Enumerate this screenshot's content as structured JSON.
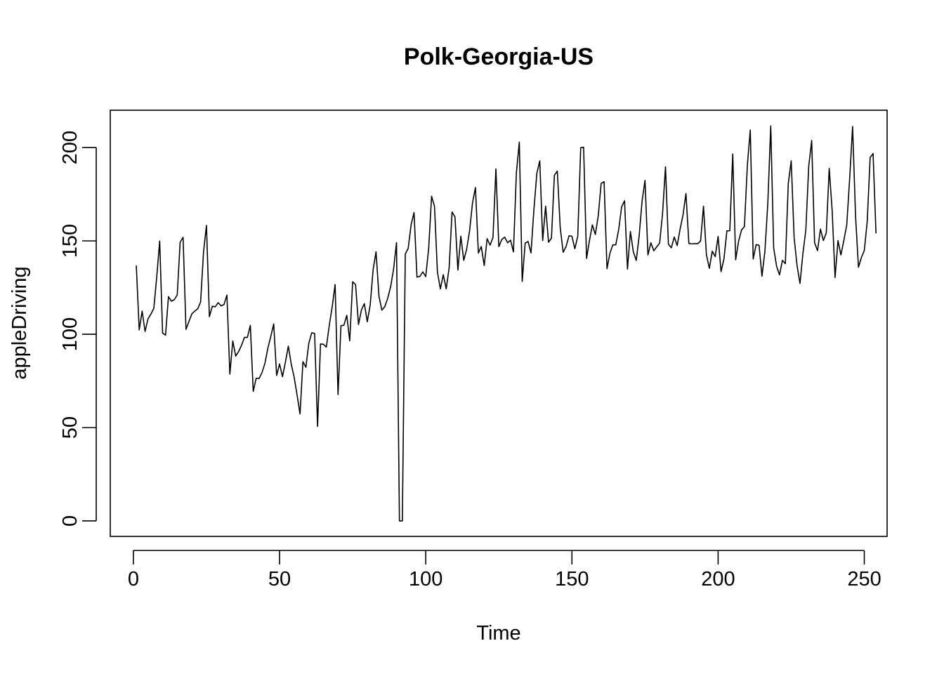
{
  "chart_data": {
    "type": "line",
    "title": "Polk-Georgia-US",
    "xlabel": "Time",
    "ylabel": "appleDriving",
    "xlim": [
      -7.9,
      257.8
    ],
    "ylim": [
      -8.3,
      220.0
    ],
    "x_ticks": [
      0,
      50,
      100,
      150,
      200,
      250
    ],
    "y_ticks": [
      0,
      50,
      100,
      150,
      200
    ],
    "x_start": 1,
    "series": [
      {
        "color": "#000000",
        "values": [
          136.8,
          102.3,
          112.4,
          101.5,
          108.2,
          110.8,
          113.9,
          130.9,
          149.9,
          100.6,
          99.5,
          120.1,
          117.7,
          118.5,
          121.0,
          149.3,
          151.9,
          102.6,
          106.8,
          110.9,
          112.4,
          113.6,
          117.3,
          144.2,
          158.3,
          109.4,
          115.0,
          114.7,
          116.9,
          115.2,
          115.9,
          121.0,
          78.6,
          96.4,
          88.3,
          90.7,
          94.1,
          98.3,
          98.3,
          104.7,
          69.4,
          76.4,
          76.3,
          79.5,
          84.4,
          92.5,
          98.8,
          105.5,
          77.9,
          84.1,
          77.3,
          85.0,
          93.6,
          84.0,
          76.9,
          67.4,
          57.3,
          85.3,
          82.3,
          95.1,
          100.8,
          100.4,
          50.6,
          94.8,
          94.6,
          93.1,
          104.7,
          114.7,
          126.6,
          67.7,
          104.6,
          104.8,
          110.1,
          96.5,
          128.1,
          126.6,
          105.2,
          113.0,
          116.4,
          106.7,
          115.6,
          134.6,
          144.2,
          120.3,
          112.9,
          114.8,
          119.3,
          125.5,
          134.9,
          149.1,
          0.0,
          0.0,
          143.0,
          146.0,
          158.7,
          165.2,
          130.6,
          131.0,
          133.4,
          130.9,
          145.9,
          173.9,
          168.5,
          133.2,
          124.3,
          131.9,
          124.3,
          135.5,
          165.5,
          162.8,
          134.4,
          152.5,
          139.6,
          145.6,
          155.4,
          170.4,
          178.6,
          143.5,
          147.0,
          136.8,
          151.2,
          147.7,
          151.9,
          188.6,
          146.9,
          150.7,
          152.0,
          149.0,
          150.4,
          144.1,
          186.4,
          202.9,
          128.3,
          148.8,
          149.7,
          143.6,
          166.8,
          186.2,
          192.9,
          150.2,
          168.6,
          149.3,
          151.5,
          185.2,
          187.4,
          157.1,
          143.9,
          147.0,
          152.7,
          152.5,
          145.8,
          152.6,
          199.9,
          200.2,
          140.6,
          150.2,
          158.6,
          153.4,
          163.4,
          180.8,
          181.7,
          135.1,
          143.4,
          147.9,
          147.9,
          156.1,
          168.3,
          171.5,
          134.9,
          155.0,
          144.2,
          139.5,
          152.8,
          171.5,
          182.4,
          142.5,
          149.0,
          144.7,
          146.8,
          148.8,
          164.7,
          189.7,
          148.2,
          146.3,
          152.1,
          147.5,
          156.4,
          163.9,
          175.4,
          148.6,
          148.4,
          148.5,
          148.5,
          149.9,
          168.6,
          142.6,
          135.3,
          144.5,
          141.6,
          152.4,
          133.5,
          140.4,
          155.4,
          155.4,
          196.6,
          139.9,
          149.8,
          155.8,
          157.7,
          190.5,
          209.4,
          140.3,
          148.0,
          147.7,
          131.1,
          144.3,
          170.2,
          211.6,
          146.3,
          136.4,
          131.8,
          139.6,
          137.8,
          180.8,
          192.9,
          151.7,
          136.8,
          127.2,
          143.1,
          155.8,
          190.1,
          203.8,
          149.0,
          144.8,
          156.3,
          150.2,
          154.3,
          188.8,
          166.5,
          130.4,
          150.1,
          142.5,
          150.2,
          158.6,
          183.6,
          211.3,
          163.6,
          135.9,
          141.1,
          144.8,
          160.4,
          194.7,
          196.8,
          154.0
        ]
      }
    ]
  }
}
